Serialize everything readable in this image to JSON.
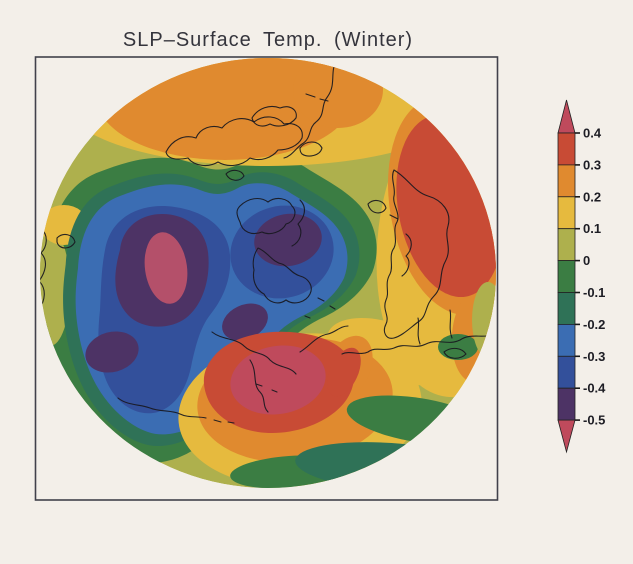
{
  "title": "SLP–Surface Temp. (Winter)",
  "palette": {
    "crimson": "#bf4a5c",
    "red": "#c84b35",
    "orange": "#e08a2f",
    "yellow": "#e6ba3e",
    "olive": "#aeb04d",
    "green": "#3b7d43",
    "teal": "#2f7257",
    "blue": "#3b6db3",
    "darkblue": "#33509b",
    "purple": "#4d3365",
    "magenta": "#b4506a"
  },
  "colorbar": {
    "position": "right",
    "tick_labels": [
      "0.4",
      "0.3",
      "0.2",
      "0.1",
      "0",
      "-0.1",
      "-0.2",
      "-0.3",
      "-0.4",
      "-0.5"
    ],
    "segments_top_to_bottom": [
      "crimson",
      "red",
      "orange",
      "yellow",
      "olive",
      "green",
      "teal",
      "blue",
      "darkblue",
      "purple",
      "crimson"
    ]
  },
  "chart_data": {
    "type": "heatmap",
    "title": "SLP–Surface Temp. (Winter)",
    "projection": "Northern Hemisphere polar stereographic map drawn as a circle inside a square frame, coastlines overlaid in black",
    "field": "filled contour map of correlation values",
    "contour_interval": 0.1,
    "levels": [
      -0.5,
      -0.4,
      -0.3,
      -0.2,
      -0.1,
      0,
      0.1,
      0.2,
      0.3,
      0.4
    ],
    "colorbar_range": [
      "below -0.5 (arrow)",
      "above 0.4 (arrow)"
    ],
    "legend_position": "vertical color bar at right with arrowheads at both ends",
    "features": [
      {
        "location": "polar cap (map center)",
        "value": "broad negative region, -0.2 to -0.5 (blue/dark blue)"
      },
      {
        "location": "center-left of pole",
        "value": "minimum below -0.5: rose core inside dark purple patch"
      },
      {
        "location": "right of pole",
        "value": "secondary minimum -0.4 to -0.5 (dark purple patch)"
      },
      {
        "location": "lower-left inside blue region",
        "value": "small -0.4 to -0.5 patch"
      },
      {
        "location": "lower-center sector",
        "value": "maximum above 0.4: rose core ringed by red, orange, yellow"
      },
      {
        "location": "upper-right limb",
        "value": "maximum 0.3 to 0.4 (large red blob ringed by orange)"
      },
      {
        "location": "top of map",
        "value": "positive band 0.2 to 0.3 (orange) surrounded by 0.1 to 0.2 yellow"
      },
      {
        "location": "left limb",
        "value": "weak positive 0 to 0.2 (olive patch with small yellow spot)"
      },
      {
        "location": "lower-right limb",
        "value": "weak negative bands -0.1 to -0.2 (dark green and teal stripes)"
      }
    ]
  }
}
